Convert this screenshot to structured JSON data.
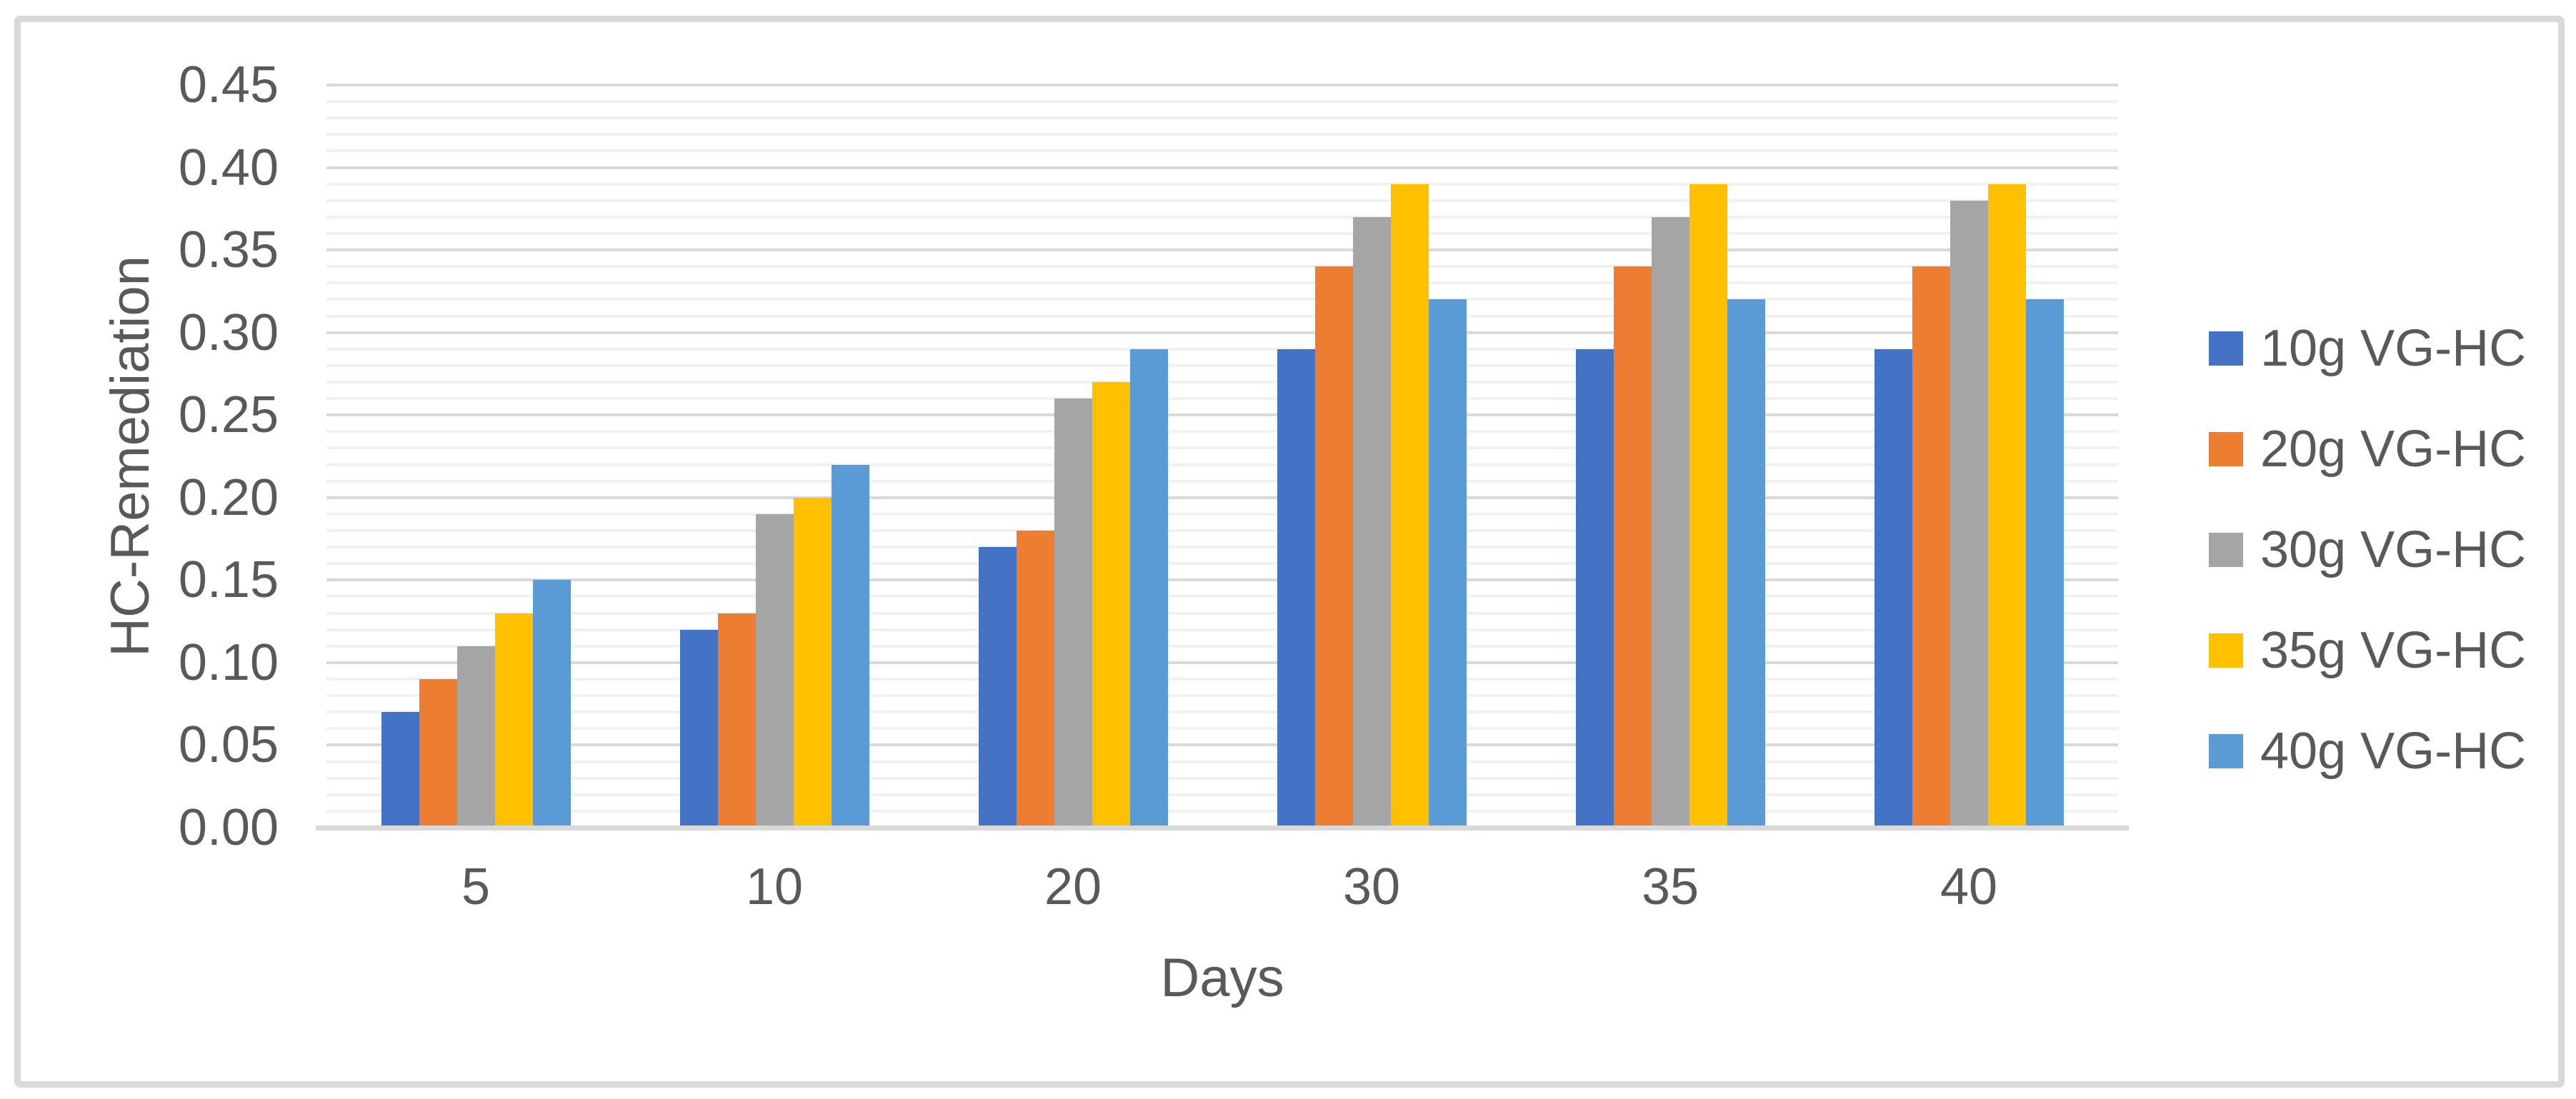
{
  "chart_data": {
    "type": "bar",
    "title": "",
    "categories": [
      "5",
      "10",
      "20",
      "30",
      "35",
      "40"
    ],
    "series": [
      {
        "name": "10g VG-HC",
        "color": "#4472C4",
        "values": [
          0.07,
          0.12,
          0.17,
          0.29,
          0.29,
          0.29
        ]
      },
      {
        "name": "20g VG-HC",
        "color": "#ED7D31",
        "values": [
          0.09,
          0.13,
          0.18,
          0.34,
          0.34,
          0.34
        ]
      },
      {
        "name": "30g VG-HC",
        "color": "#A5A5A5",
        "values": [
          0.11,
          0.19,
          0.26,
          0.37,
          0.37,
          0.38
        ]
      },
      {
        "name": "35g VG-HC",
        "color": "#FFC000",
        "values": [
          0.13,
          0.2,
          0.27,
          0.39,
          0.39,
          0.39
        ]
      },
      {
        "name": "40g VG-HC",
        "color": "#5B9BD5",
        "values": [
          0.15,
          0.22,
          0.29,
          0.32,
          0.32,
          0.32
        ]
      }
    ],
    "xlabel": "Days",
    "ylabel": "HC-Remediation",
    "ylim": [
      0,
      0.45
    ],
    "y_tick_step": 0.05,
    "y_minor_step": 0.01,
    "y_tick_decimals": 2,
    "grid": true,
    "legend_position": "right"
  },
  "palette": {
    "text": "#595959",
    "major_gridline": "#D9D9D9",
    "minor_gridline": "#F1F1F1",
    "axis_line": "#D9D9D9",
    "border": "#D9D9D9",
    "background": "#FFFFFF"
  }
}
